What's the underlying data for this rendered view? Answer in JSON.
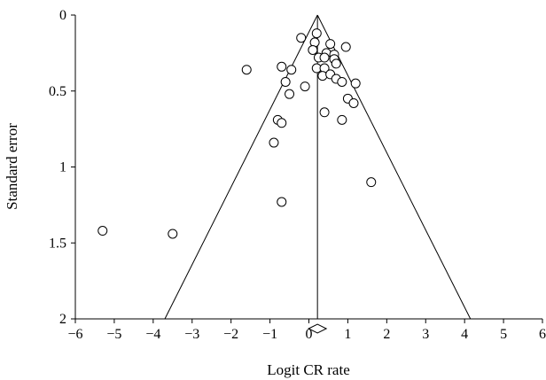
{
  "chart_data": {
    "type": "scatter",
    "subtype": "funnel-plot",
    "xlabel": "Logit CR rate",
    "ylabel": "Standard error",
    "xlim": [
      -6,
      6
    ],
    "ylim": [
      0,
      2
    ],
    "y_inverted": true,
    "x_ticks": [
      -6,
      -5,
      -4,
      -3,
      -2,
      -1,
      0,
      1,
      2,
      3,
      4,
      5,
      6
    ],
    "x_tick_labels": [
      "−6",
      "−5",
      "−4",
      "−3",
      "−2",
      "−1",
      "0",
      "1",
      "2",
      "3",
      "4",
      "5",
      "6"
    ],
    "y_ticks": [
      0,
      0.5,
      1,
      1.5,
      2
    ],
    "y_tick_labels": [
      "0",
      "0.5",
      "1",
      "1.5",
      "2"
    ],
    "pooled_estimate": 0.22,
    "funnel": {
      "apex": [
        0.22,
        0
      ],
      "left_base": [
        -3.7,
        2
      ],
      "right_base": [
        4.15,
        2
      ]
    },
    "points": [
      {
        "x": 0.2,
        "y": 0.12
      },
      {
        "x": -0.2,
        "y": 0.15
      },
      {
        "x": 0.15,
        "y": 0.18
      },
      {
        "x": 0.55,
        "y": 0.19
      },
      {
        "x": 0.95,
        "y": 0.21
      },
      {
        "x": 0.1,
        "y": 0.23
      },
      {
        "x": 0.45,
        "y": 0.25
      },
      {
        "x": 0.65,
        "y": 0.26
      },
      {
        "x": 0.65,
        "y": 0.29
      },
      {
        "x": 0.25,
        "y": 0.28
      },
      {
        "x": 0.4,
        "y": 0.28
      },
      {
        "x": 0.7,
        "y": 0.32
      },
      {
        "x": -0.7,
        "y": 0.34
      },
      {
        "x": 0.2,
        "y": 0.35
      },
      {
        "x": 0.4,
        "y": 0.35
      },
      {
        "x": -1.6,
        "y": 0.36
      },
      {
        "x": -0.45,
        "y": 0.36
      },
      {
        "x": 0.35,
        "y": 0.4
      },
      {
        "x": 0.55,
        "y": 0.39
      },
      {
        "x": 0.7,
        "y": 0.42
      },
      {
        "x": -0.6,
        "y": 0.44
      },
      {
        "x": 0.85,
        "y": 0.44
      },
      {
        "x": 1.2,
        "y": 0.45
      },
      {
        "x": -0.1,
        "y": 0.47
      },
      {
        "x": -0.5,
        "y": 0.52
      },
      {
        "x": 1.0,
        "y": 0.55
      },
      {
        "x": 1.15,
        "y": 0.58
      },
      {
        "x": 0.4,
        "y": 0.64
      },
      {
        "x": -0.8,
        "y": 0.69
      },
      {
        "x": 0.85,
        "y": 0.69
      },
      {
        "x": -0.7,
        "y": 0.71
      },
      {
        "x": -0.9,
        "y": 0.84
      },
      {
        "x": 1.6,
        "y": 1.1
      },
      {
        "x": -0.7,
        "y": 1.23
      },
      {
        "x": -5.3,
        "y": 1.42
      },
      {
        "x": -3.5,
        "y": 1.44
      }
    ]
  }
}
